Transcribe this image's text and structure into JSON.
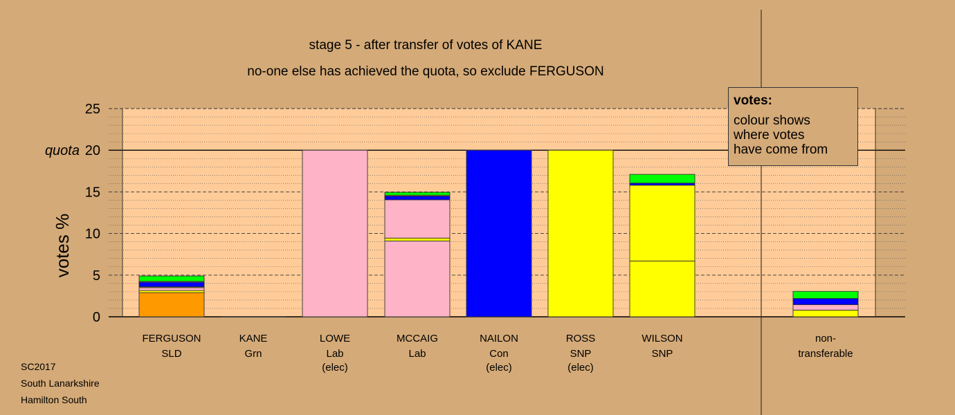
{
  "chart_data": {
    "type": "bar",
    "stacked": true,
    "title": "stage 5 - after transfer of votes of KANE",
    "subtitle": "no-one else has achieved the quota, so exclude FERGUSON",
    "ylabel": "votes %",
    "ylim": [
      0,
      25
    ],
    "yticks": [
      "0",
      "5",
      "10",
      "15",
      "20",
      "25"
    ],
    "quota": {
      "value": 20,
      "label": "quota"
    },
    "legend": {
      "heading": "votes:",
      "text": "colour shows\nwhere votes\nhave come from"
    },
    "colors": {
      "SLD": "#ff9900",
      "Lab": "#ffb3c6",
      "Con": "#0000ff",
      "SNP": "#ffff00",
      "Grn": "#00ff00"
    },
    "candidates": [
      {
        "name": "FERGUSON",
        "party": "SLD",
        "note": "",
        "segments": [
          {
            "from": "SLD",
            "value": 2.9
          },
          {
            "from": "SNP",
            "value": 0.25
          },
          {
            "from": "Lab",
            "value": 0.35
          },
          {
            "from": "SNP",
            "value": 0.1
          },
          {
            "from": "Con",
            "value": 0.55
          },
          {
            "from": "Lab",
            "value": 0.1
          },
          {
            "from": "Grn",
            "value": 0.65
          }
        ]
      },
      {
        "name": "KANE",
        "party": "Grn",
        "note": "",
        "segments": []
      },
      {
        "name": "LOWE",
        "party": "Lab",
        "note": "(elec)",
        "segments": [
          {
            "from": "Lab",
            "value": 20
          }
        ]
      },
      {
        "name": "MCCAIG",
        "party": "Lab",
        "note": "",
        "segments": [
          {
            "from": "Lab",
            "value": 9.1
          },
          {
            "from": "SNP",
            "value": 0.35
          },
          {
            "from": "Lab",
            "value": 4.6
          },
          {
            "from": "Con",
            "value": 0.45
          },
          {
            "from": "SNP",
            "value": 0.1
          },
          {
            "from": "Grn",
            "value": 0.35
          }
        ]
      },
      {
        "name": "NAILON",
        "party": "Con",
        "note": "(elec)",
        "segments": [
          {
            "from": "Con",
            "value": 20
          }
        ]
      },
      {
        "name": "ROSS",
        "party": "SNP",
        "note": "(elec)",
        "segments": [
          {
            "from": "SNP",
            "value": 20
          }
        ]
      },
      {
        "name": "WILSON",
        "party": "SNP",
        "note": "",
        "segments": [
          {
            "from": "SNP",
            "value": 6.7
          },
          {
            "from": "SNP",
            "value": 9.1
          },
          {
            "from": "Con",
            "value": 0.25
          },
          {
            "from": "Grn",
            "value": 1.05
          }
        ]
      }
    ],
    "nontransferable": {
      "label1": "non-",
      "label2": "transferable",
      "segments": [
        {
          "from": "SNP",
          "value": 0.8
        },
        {
          "from": "Lab",
          "value": 0.65
        },
        {
          "from": "Con",
          "value": 0.75
        },
        {
          "from": "Grn",
          "value": 0.85
        }
      ]
    }
  },
  "footer": {
    "line1": "SC2017",
    "line2": "South Lanarkshire",
    "line3": "Hamilton South"
  }
}
